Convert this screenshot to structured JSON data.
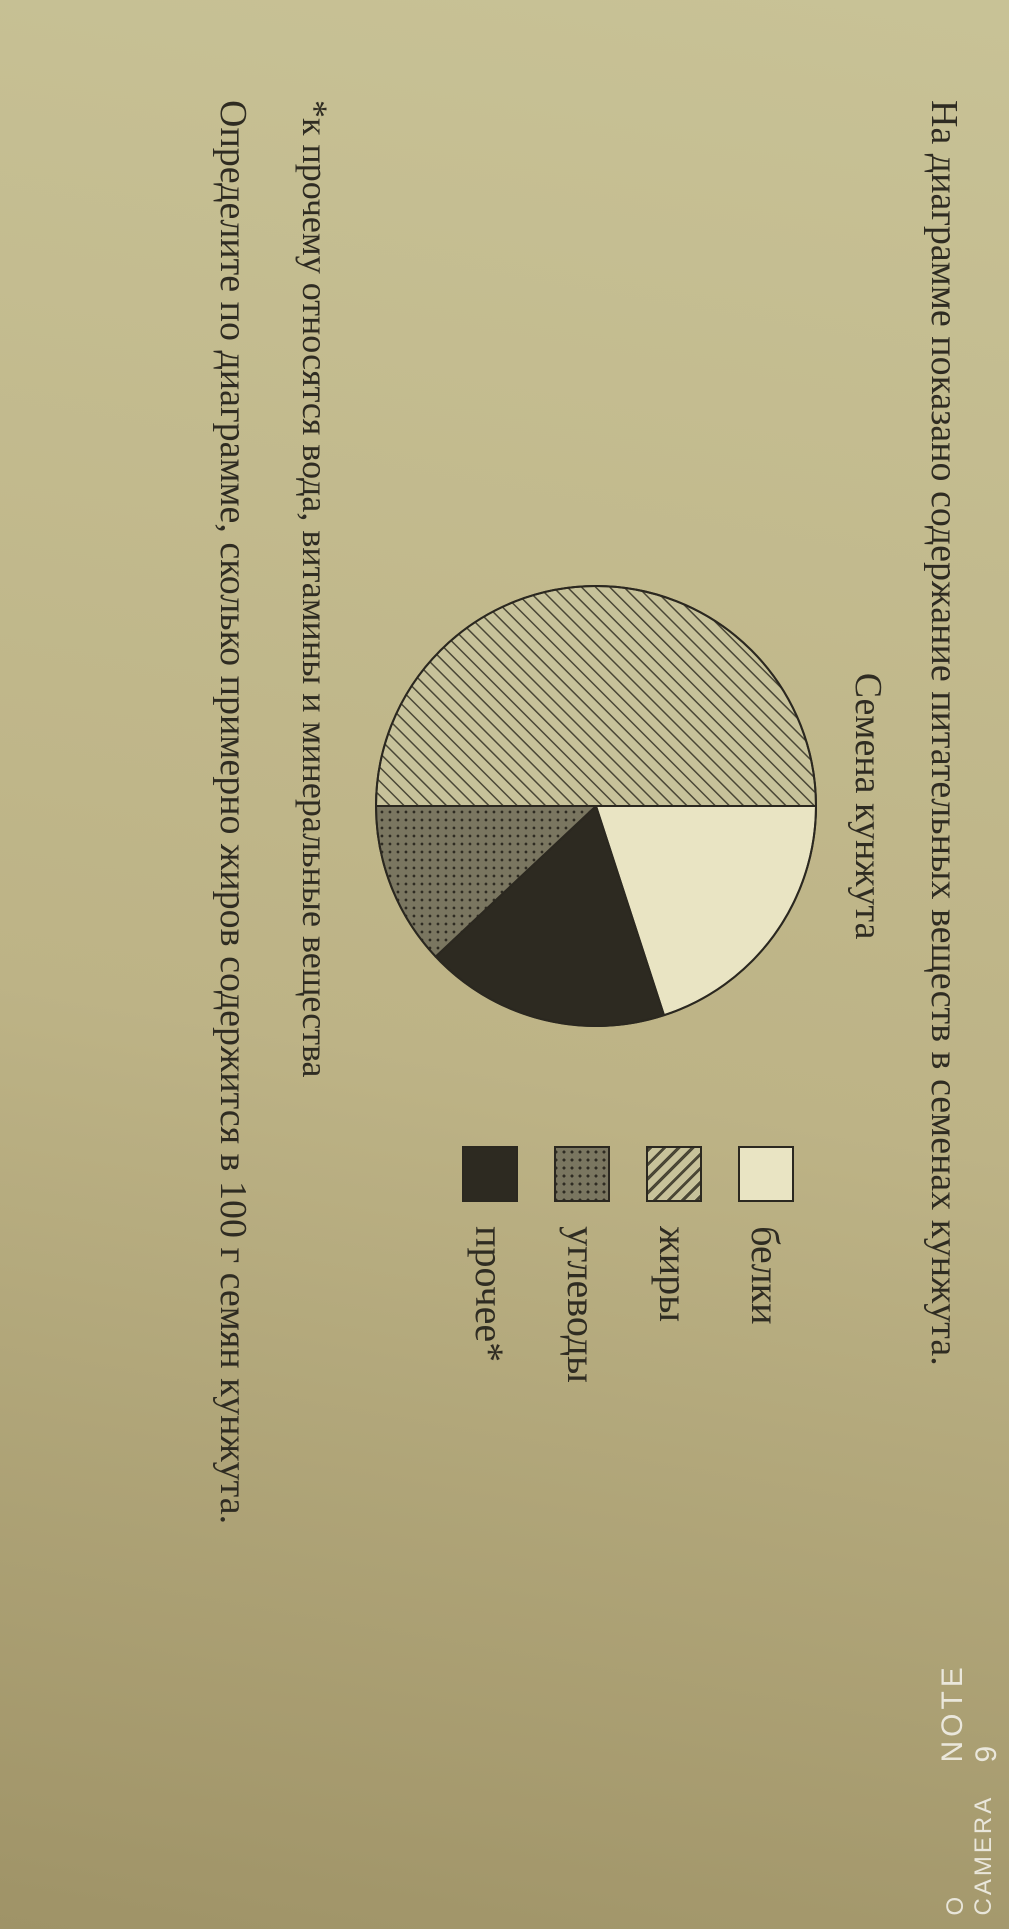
{
  "intro_text": "На диаграмме показано содержание питательных веществ в семенах кун­жута.",
  "chart": {
    "title": "Семена кунжута",
    "type": "pie",
    "radius": 220,
    "stroke": "#2b2820",
    "stroke_width": 2,
    "slices": [
      {
        "key": "belki",
        "label": "белки",
        "percent": 20,
        "fill": "#e9e4c3",
        "pattern": null
      },
      {
        "key": "prochee",
        "label": "прочее*",
        "percent": 18,
        "fill": "#2d2a21",
        "pattern": null
      },
      {
        "key": "uglevody",
        "label": "углеводы",
        "percent": 12,
        "fill": "#6e6a55",
        "pattern": "dots"
      },
      {
        "key": "zhiry",
        "label": "жиры",
        "percent": 50,
        "fill": "#bcb890",
        "pattern": "hatch"
      }
    ],
    "start_angle_deg": -90
  },
  "legend_order": [
    "belki",
    "zhiry",
    "uglevody",
    "prochee"
  ],
  "footnote_text": "*к прочему относятся вода, витамины и минеральные вещества",
  "question_text": "Определите по диаграмме, сколько примерно жиров содержится в 100 г семян кунжута.",
  "watermark": {
    "line1": "NOTE 9",
    "line2": "O CAMERA"
  },
  "palette": {
    "page_bg_light": "#c8c296",
    "page_bg_dark": "#9f9367",
    "text": "#2f2c22"
  }
}
